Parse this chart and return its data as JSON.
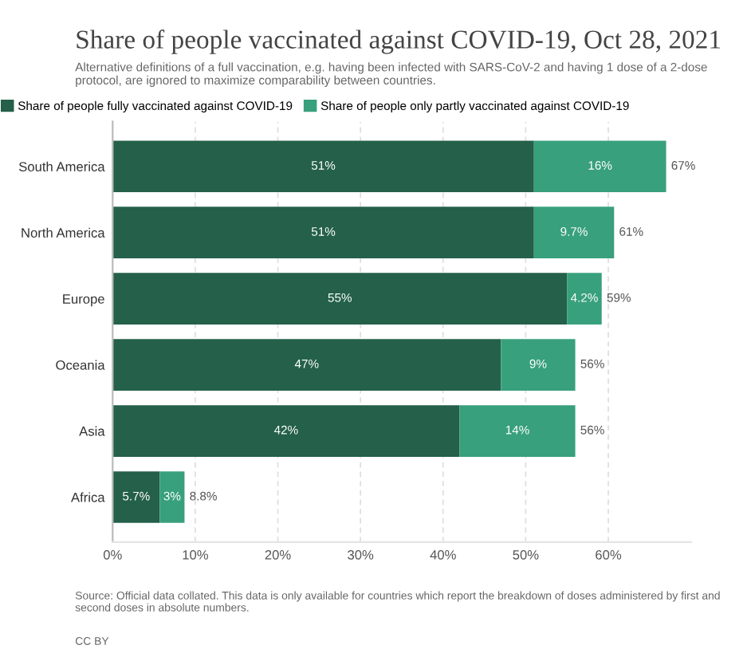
{
  "chart_data": {
    "type": "bar",
    "orientation": "horizontal",
    "stacked": true,
    "title": "Share of people vaccinated against COVID-19, Oct 28, 2021",
    "subtitle": "Alternative definitions of a full vaccination, e.g. having been infected with SARS-CoV-2 and having 1 dose of a 2-dose protocol, are ignored to maximize comparability between countries.",
    "categories": [
      "South America",
      "North America",
      "Europe",
      "Oceania",
      "Asia",
      "Africa"
    ],
    "series": [
      {
        "name": "Share of people fully vaccinated against COVID-19",
        "color": "#24604a",
        "values": [
          51,
          51,
          55,
          47,
          42,
          5.7
        ],
        "value_labels": [
          "51%",
          "51%",
          "55%",
          "47%",
          "42%",
          "5.7%"
        ]
      },
      {
        "name": "Share of people only partly vaccinated against COVID-19",
        "color": "#38a07c",
        "values": [
          16,
          9.7,
          4.2,
          9,
          14,
          3
        ],
        "value_labels": [
          "16%",
          "9.7%",
          "4.2%",
          "9%",
          "14%",
          "3%"
        ]
      }
    ],
    "totals": [
      "67%",
      "61%",
      "59%",
      "56%",
      "56%",
      "8.8%"
    ],
    "xlim": [
      0,
      70
    ],
    "xticks": [
      {
        "value": 0,
        "label": "0%"
      },
      {
        "value": 10,
        "label": "10%"
      },
      {
        "value": 20,
        "label": "20%"
      },
      {
        "value": 30,
        "label": "30%"
      },
      {
        "value": 40,
        "label": "40%"
      },
      {
        "value": 50,
        "label": "50%"
      },
      {
        "value": 60,
        "label": "60%"
      }
    ],
    "grid": "x",
    "legend": "top left",
    "annotations": [
      "Source: Official data collated. This data is only available for countries which report the breakdown of doses administered by first and second doses in absolute numbers.",
      "CC BY"
    ]
  }
}
